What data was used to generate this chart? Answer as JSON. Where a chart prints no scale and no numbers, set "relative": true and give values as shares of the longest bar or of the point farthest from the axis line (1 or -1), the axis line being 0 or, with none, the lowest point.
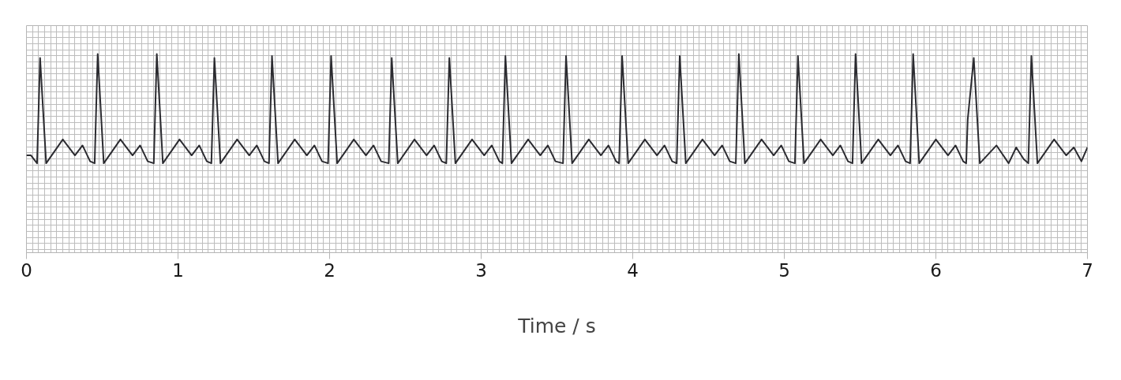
{
  "chart_data": {
    "type": "line",
    "relative": true,
    "xlabel": "Time / s",
    "xlim": [
      0,
      7
    ],
    "xticks": [
      0,
      1,
      2,
      3,
      4,
      5,
      6,
      7
    ],
    "grid": true,
    "line_style": "solid",
    "series": [
      {
        "color": "#2b2b30",
        "x": [
          0,
          0.03,
          0.07,
          0.09,
          0.13,
          0.24,
          0.32,
          0.37,
          0.42,
          0.45,
          0.47,
          0.51,
          0.62,
          0.7,
          0.75,
          0.8,
          0.84,
          0.86,
          0.9,
          1.01,
          1.09,
          1.14,
          1.19,
          1.22,
          1.24,
          1.28,
          1.39,
          1.47,
          1.52,
          1.57,
          1.6,
          1.62,
          1.66,
          1.77,
          1.85,
          1.9,
          1.95,
          1.99,
          2.01,
          2.05,
          2.16,
          2.24,
          2.29,
          2.34,
          2.39,
          2.41,
          2.45,
          2.56,
          2.64,
          2.69,
          2.74,
          2.77,
          2.79,
          2.83,
          2.94,
          3.02,
          3.07,
          3.12,
          3.14,
          3.16,
          3.2,
          3.31,
          3.39,
          3.44,
          3.49,
          3.54,
          3.56,
          3.6,
          3.71,
          3.79,
          3.84,
          3.89,
          3.91,
          3.93,
          3.97,
          4.08,
          4.16,
          4.21,
          4.26,
          4.29,
          4.31,
          4.35,
          4.46,
          4.54,
          4.59,
          4.64,
          4.68,
          4.7,
          4.74,
          4.85,
          4.93,
          4.98,
          5.03,
          5.07,
          5.09,
          5.13,
          5.24,
          5.32,
          5.37,
          5.42,
          5.45,
          5.47,
          5.51,
          5.62,
          5.7,
          5.75,
          5.8,
          5.83,
          5.85,
          5.89,
          6.0,
          6.08,
          6.13,
          6.18,
          6.2,
          6.21,
          6.25,
          6.29,
          6.4,
          6.48,
          6.53,
          6.58,
          6.61,
          6.63,
          6.67,
          6.78,
          6.86,
          6.91,
          6.96,
          7.0
        ],
        "values": [
          0.49,
          0.49,
          0.45,
          0.98,
          0.45,
          0.57,
          0.49,
          0.54,
          0.46,
          0.45,
          1,
          0.45,
          0.57,
          0.49,
          0.54,
          0.46,
          0.45,
          1,
          0.45,
          0.57,
          0.49,
          0.54,
          0.46,
          0.45,
          0.98,
          0.45,
          0.57,
          0.49,
          0.54,
          0.46,
          0.45,
          0.99,
          0.45,
          0.57,
          0.49,
          0.54,
          0.46,
          0.45,
          0.99,
          0.45,
          0.57,
          0.49,
          0.54,
          0.46,
          0.45,
          0.98,
          0.45,
          0.57,
          0.49,
          0.54,
          0.46,
          0.45,
          0.98,
          0.45,
          0.57,
          0.49,
          0.54,
          0.46,
          0.45,
          0.99,
          0.45,
          0.57,
          0.49,
          0.54,
          0.46,
          0.45,
          0.99,
          0.45,
          0.57,
          0.49,
          0.54,
          0.46,
          0.45,
          0.99,
          0.45,
          0.57,
          0.49,
          0.54,
          0.46,
          0.45,
          0.99,
          0.45,
          0.57,
          0.49,
          0.54,
          0.46,
          0.45,
          1,
          0.45,
          0.57,
          0.49,
          0.54,
          0.46,
          0.45,
          0.99,
          0.45,
          0.57,
          0.49,
          0.54,
          0.46,
          0.45,
          1,
          0.45,
          0.57,
          0.49,
          0.54,
          0.46,
          0.45,
          1,
          0.45,
          0.57,
          0.49,
          0.54,
          0.46,
          0.45,
          0.67,
          0.98,
          0.45,
          0.54,
          0.45,
          0.53,
          0.47,
          0.45,
          0.99,
          0.45,
          0.57,
          0.49,
          0.53,
          0.46,
          0.53
        ]
      }
    ]
  }
}
